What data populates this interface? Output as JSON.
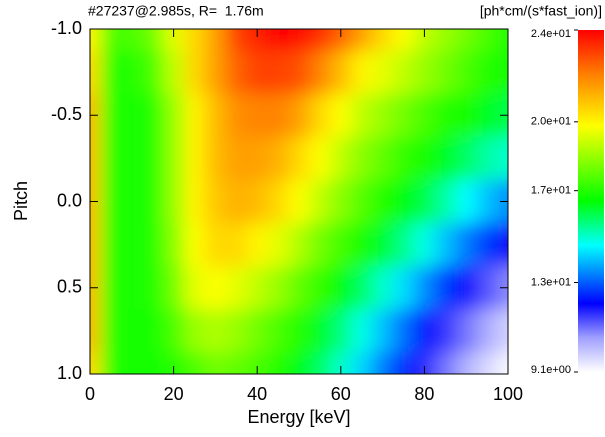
{
  "chart_data": {
    "type": "heatmap",
    "title": "#27237@2.985s, R=  1.76m",
    "colorbar_label": "[ph*cm/(s*fast_ion)]",
    "x_label": "Energy [keV]",
    "y_label": "Pitch",
    "xlim": [
      0,
      100
    ],
    "xticks": [
      0,
      20,
      40,
      60,
      80,
      100
    ],
    "ylim": [
      1,
      -1
    ],
    "yticks": [
      {
        "value": -1,
        "label": "-1.0"
      },
      -0.5,
      {
        "value": 0,
        "label": "0.0"
      },
      0.5,
      {
        "value": 1,
        "label": "1.0"
      }
    ],
    "zlim": [
      9.1,
      24
    ],
    "zticks": [
      {
        "value": 24,
        "label": "2.4e+01"
      },
      {
        "value": 20,
        "label": "2.0e+01"
      },
      {
        "value": 17,
        "label": "1.7e+01"
      },
      {
        "value": 13,
        "label": "1.3e+01"
      },
      {
        "value": 9.1,
        "label": "9.1e+00"
      }
    ],
    "x": [
      0,
      5,
      10,
      15,
      20,
      25,
      30,
      35,
      40,
      45,
      50,
      55,
      60,
      65,
      70,
      75,
      80,
      85,
      90,
      95,
      100
    ],
    "y": [
      -1,
      -0.75,
      -0.5,
      -0.25,
      0,
      0.25,
      0.5,
      0.75,
      1
    ],
    "z": [
      [
        20,
        17.5,
        17.5,
        18,
        19.5,
        20.5,
        21.5,
        23,
        23.5,
        24,
        23.8,
        23.3,
        22.5,
        21.5,
        20.5,
        19.8,
        19,
        18.5,
        18,
        17.5,
        17
      ],
      [
        20.5,
        17,
        17,
        17.5,
        19,
        20.5,
        21.5,
        22.5,
        23,
        23,
        22.8,
        22,
        21,
        20,
        19.5,
        19,
        18.5,
        18,
        17.5,
        17,
        16.8
      ],
      [
        21,
        17,
        16.8,
        17,
        18.5,
        20,
        21,
        21.8,
        22,
        22,
        21.5,
        20.5,
        19.8,
        19,
        18.5,
        18,
        17.5,
        17,
        16.8,
        16.3,
        16
      ],
      [
        21,
        17,
        16.8,
        17,
        18.5,
        20,
        21,
        21.5,
        21.5,
        21.2,
        20.5,
        19.8,
        19,
        18.3,
        17.8,
        17.2,
        16.8,
        16.3,
        15.8,
        15.3,
        15
      ],
      [
        21,
        17,
        16.8,
        17,
        18.5,
        20,
        20.8,
        21.2,
        21,
        20.5,
        19.8,
        19,
        18.3,
        17.6,
        17,
        16.5,
        16,
        15.3,
        14.6,
        14,
        13.5
      ],
      [
        21,
        17,
        16.8,
        17,
        18.3,
        19.8,
        20.5,
        20.5,
        20,
        19.5,
        18.8,
        18,
        17.4,
        16.8,
        16.2,
        15.5,
        14.8,
        14,
        13.3,
        12.7,
        12
      ],
      [
        21,
        17,
        16.8,
        17,
        18,
        19.5,
        19.8,
        19.5,
        19,
        18.5,
        17.8,
        17.2,
        16.5,
        15.8,
        15,
        14.3,
        13.5,
        12.7,
        12,
        11.3,
        10.8
      ],
      [
        21,
        17,
        16.8,
        16.8,
        17.5,
        18.5,
        18.8,
        18.5,
        18,
        17.5,
        17,
        16.3,
        15.6,
        14.8,
        14,
        13.2,
        12.3,
        11.6,
        11,
        10.4,
        9.8
      ],
      [
        20.5,
        17,
        16.8,
        16.8,
        17,
        17.5,
        18,
        17.8,
        17.5,
        17,
        16.4,
        15.8,
        15,
        14.2,
        13.3,
        12.5,
        11.7,
        11,
        10.3,
        9.7,
        9.2
      ]
    ]
  }
}
